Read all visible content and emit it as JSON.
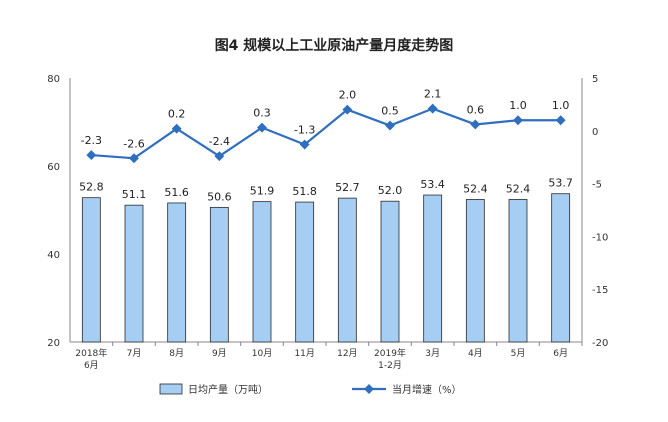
{
  "chart_data": {
    "type": "bar",
    "title": "图4  规模以上工业原油产量月度走势图",
    "categories": [
      [
        "2018年",
        "6月"
      ],
      [
        "7月"
      ],
      [
        "8月"
      ],
      [
        "9月"
      ],
      [
        "10月"
      ],
      [
        "11月"
      ],
      [
        "12月"
      ],
      [
        "2019年",
        "1-2月"
      ],
      [
        "3月"
      ],
      [
        "4月"
      ],
      [
        "5月"
      ],
      [
        "6月"
      ]
    ],
    "series": [
      {
        "name": "日均产量（万吨）",
        "type": "bar",
        "axis": "left",
        "values": [
          52.8,
          51.1,
          51.6,
          50.6,
          51.9,
          51.8,
          52.7,
          52.0,
          53.4,
          52.4,
          52.4,
          53.7
        ],
        "labels": [
          "52.8",
          "51.1",
          "51.6",
          "50.6",
          "51.9",
          "51.8",
          "52.7",
          "52.0",
          "53.4",
          "52.4",
          "52.4",
          "53.7"
        ],
        "color": "#a6cdf2",
        "stroke": "#2a2a2a"
      },
      {
        "name": "当月增速（%）",
        "type": "line",
        "axis": "right",
        "values": [
          -2.3,
          -2.6,
          0.2,
          -2.4,
          0.3,
          -1.3,
          2.0,
          0.5,
          2.1,
          0.6,
          1.0,
          1.0
        ],
        "labels": [
          "-2.3",
          "-2.6",
          "0.2",
          "-2.4",
          "0.3",
          "-1.3",
          "2.0",
          "0.5",
          "2.1",
          "0.6",
          "1.0",
          "1.0"
        ],
        "color": "#2f6fbd"
      }
    ],
    "y_left": {
      "ylim": [
        20,
        80
      ],
      "ticks": [
        "20",
        "40",
        "60",
        "80"
      ]
    },
    "y_right": {
      "ylim": [
        -20,
        5
      ],
      "ticks": [
        "-20",
        "-15",
        "-10",
        "-5",
        "0",
        "5"
      ]
    },
    "grid": false,
    "legend": "bottom-center"
  }
}
